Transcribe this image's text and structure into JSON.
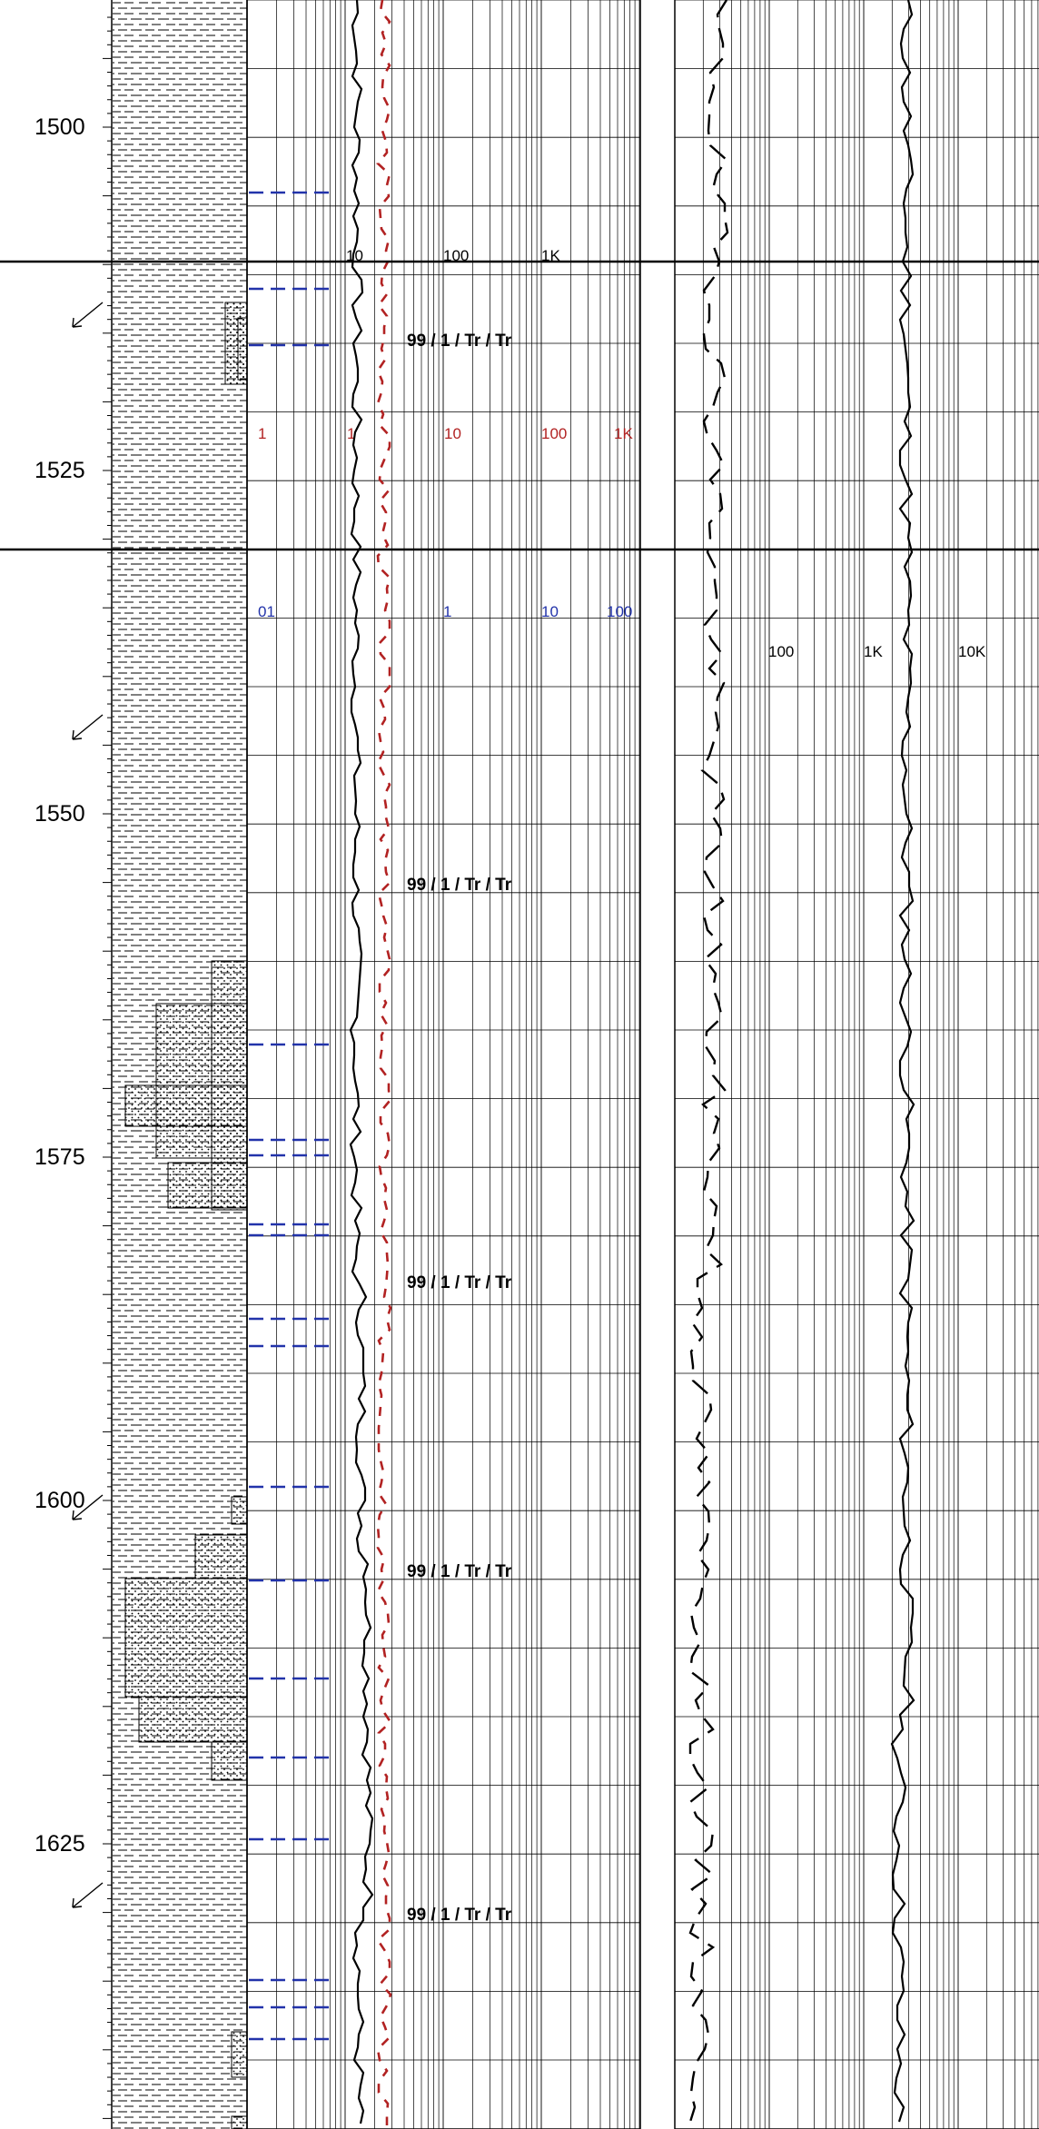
{
  "depth_track": {
    "labels": [
      "1500",
      "1525",
      "1550",
      "1575",
      "1600",
      "1625"
    ]
  },
  "track2_scales": {
    "black": [
      "10",
      "100",
      "1K"
    ],
    "red": [
      "1",
      "1",
      "10",
      "100",
      "1K"
    ],
    "blue": [
      "01",
      "1",
      "10",
      "100"
    ]
  },
  "track3_scales": {
    "black": [
      "100",
      "1K",
      "10K"
    ]
  },
  "show_labels": [
    "99 / 1 / Tr / Tr",
    "99 / 1 / Tr / Tr",
    "99 / 1 / Tr / Tr",
    "99 / 1 / Tr / Tr",
    "99 / 1 / Tr / Tr"
  ],
  "colors": {
    "gas_curve": "#000000",
    "red_curve": "#b22222",
    "blue_curve": "#2233aa",
    "grid": "#000000"
  },
  "icons": [
    "core-arrow-icon",
    "core-arrow-icon",
    "core-arrow-icon",
    "core-arrow-icon"
  ],
  "chart_data": {
    "type": "line",
    "depth_range": [
      1491,
      1648
    ],
    "lithology_intervals": [
      {
        "top": 1491,
        "base": 1648,
        "type": "shale"
      },
      {
        "top": 1511,
        "base": 1515,
        "type": "sandstone"
      },
      {
        "top": 1560,
        "base": 1579,
        "type": "sandstone"
      },
      {
        "top": 1600,
        "base": 1621,
        "type": "sandstone"
      },
      {
        "top": 1639,
        "base": 1642,
        "type": "sandstone"
      },
      {
        "top": 1646,
        "base": 1648,
        "type": "sandstone"
      }
    ]
  }
}
